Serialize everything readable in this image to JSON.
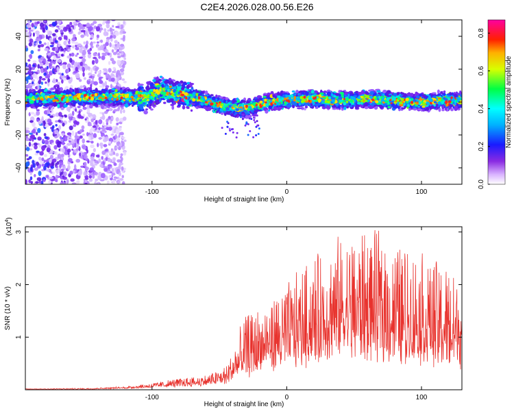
{
  "title": "C2E4.2026.028.00.56.E26",
  "chart_data": [
    {
      "type": "heatmap",
      "xlabel": "Height of straight line (km)",
      "ylabel": "Frequency (Hz)",
      "xlim": [
        -194,
        130
      ],
      "ylim": [
        -50,
        50
      ],
      "xticks": [
        -100,
        0,
        100
      ],
      "xtick_labels": [
        "-100",
        "0",
        "100"
      ],
      "yticks": [
        -40,
        -20,
        0,
        20,
        40
      ],
      "ytick_labels": [
        "-40",
        "-20",
        "0",
        "20",
        "40"
      ],
      "colorbar": {
        "label": "Normalized spectral amplitude",
        "range": [
          0.0,
          0.87
        ],
        "ticks": [
          0.0,
          0.2,
          0.4,
          0.6,
          0.8
        ],
        "tick_labels": [
          "0.0",
          "0.2",
          "0.4",
          "0.6",
          "0.8"
        ],
        "colormap": "rainbow (white-violet-blue-cyan-green-yellow-red-magenta)"
      },
      "band_center_hz": [
        {
          "x": -190,
          "f": 2
        },
        {
          "x": -150,
          "f": 3
        },
        {
          "x": -120,
          "f": 3
        },
        {
          "x": -105,
          "f": 2
        },
        {
          "x": -95,
          "f": 7
        },
        {
          "x": -80,
          "f": 5
        },
        {
          "x": -60,
          "f": 1
        },
        {
          "x": -45,
          "f": -3
        },
        {
          "x": -30,
          "f": -4
        },
        {
          "x": -15,
          "f": 0
        },
        {
          "x": 0,
          "f": 1
        },
        {
          "x": 20,
          "f": 2
        },
        {
          "x": 40,
          "f": 1
        },
        {
          "x": 60,
          "f": 2
        },
        {
          "x": 80,
          "f": 1
        },
        {
          "x": 100,
          "f": 0
        },
        {
          "x": 115,
          "f": 1
        },
        {
          "x": 130,
          "f": 1
        }
      ],
      "noise_region_km": [
        -194,
        -120
      ]
    },
    {
      "type": "line",
      "xlabel": "Height of straight line (km)",
      "ylabel": "SNR (10 * v/v)",
      "y_multiplier": "(x10",
      "y_multiplier_exp": "4",
      "y_multiplier_close": ")",
      "xlim": [
        -194,
        130
      ],
      "ylim": [
        0,
        3.1
      ],
      "xticks": [
        -100,
        0,
        100
      ],
      "xtick_labels": [
        "-100",
        "0",
        "100"
      ],
      "yticks": [
        1,
        2,
        3
      ],
      "ytick_labels": [
        "1",
        "2",
        "3"
      ],
      "series": [
        {
          "name": "SNR",
          "color": "#e8332e",
          "envelope": [
            {
              "x": -194,
              "base": 0.01,
              "peak": 0.02
            },
            {
              "x": -150,
              "base": 0.01,
              "peak": 0.03
            },
            {
              "x": -120,
              "base": 0.03,
              "peak": 0.06
            },
            {
              "x": -100,
              "base": 0.05,
              "peak": 0.13
            },
            {
              "x": -80,
              "base": 0.08,
              "peak": 0.22
            },
            {
              "x": -60,
              "base": 0.1,
              "peak": 0.28
            },
            {
              "x": -45,
              "base": 0.15,
              "peak": 0.45
            },
            {
              "x": -30,
              "base": 0.35,
              "peak": 1.45
            },
            {
              "x": -15,
              "base": 0.5,
              "peak": 1.6
            },
            {
              "x": 0,
              "base": 0.6,
              "peak": 2.0
            },
            {
              "x": 20,
              "base": 0.7,
              "peak": 2.5
            },
            {
              "x": 40,
              "base": 0.8,
              "peak": 2.9
            },
            {
              "x": 60,
              "base": 0.8,
              "peak": 3.05
            },
            {
              "x": 80,
              "base": 0.7,
              "peak": 2.8
            },
            {
              "x": 100,
              "base": 0.7,
              "peak": 2.6
            },
            {
              "x": 115,
              "base": 0.6,
              "peak": 2.4
            },
            {
              "x": 130,
              "base": 0.6,
              "peak": 2.2
            }
          ]
        }
      ]
    }
  ]
}
